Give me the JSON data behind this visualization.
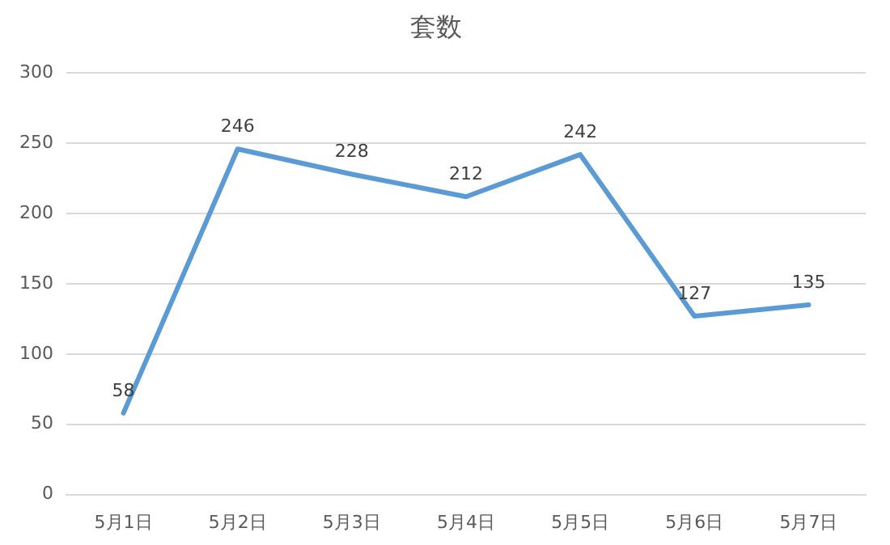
{
  "chart_data": {
    "type": "line",
    "title": "套数",
    "categories": [
      "5月1日",
      "5月2日",
      "5月3日",
      "5月4日",
      "5月5日",
      "5月6日",
      "5月7日"
    ],
    "series": [
      {
        "color": "#5b9bd5",
        "values": [
          58,
          246,
          228,
          212,
          242,
          127,
          135
        ]
      }
    ],
    "ylim": [
      0,
      300
    ],
    "yticks": [
      0,
      50,
      100,
      150,
      200,
      250,
      300
    ],
    "grid": "y",
    "legend": false,
    "marker": "none",
    "data_labels": true
  }
}
